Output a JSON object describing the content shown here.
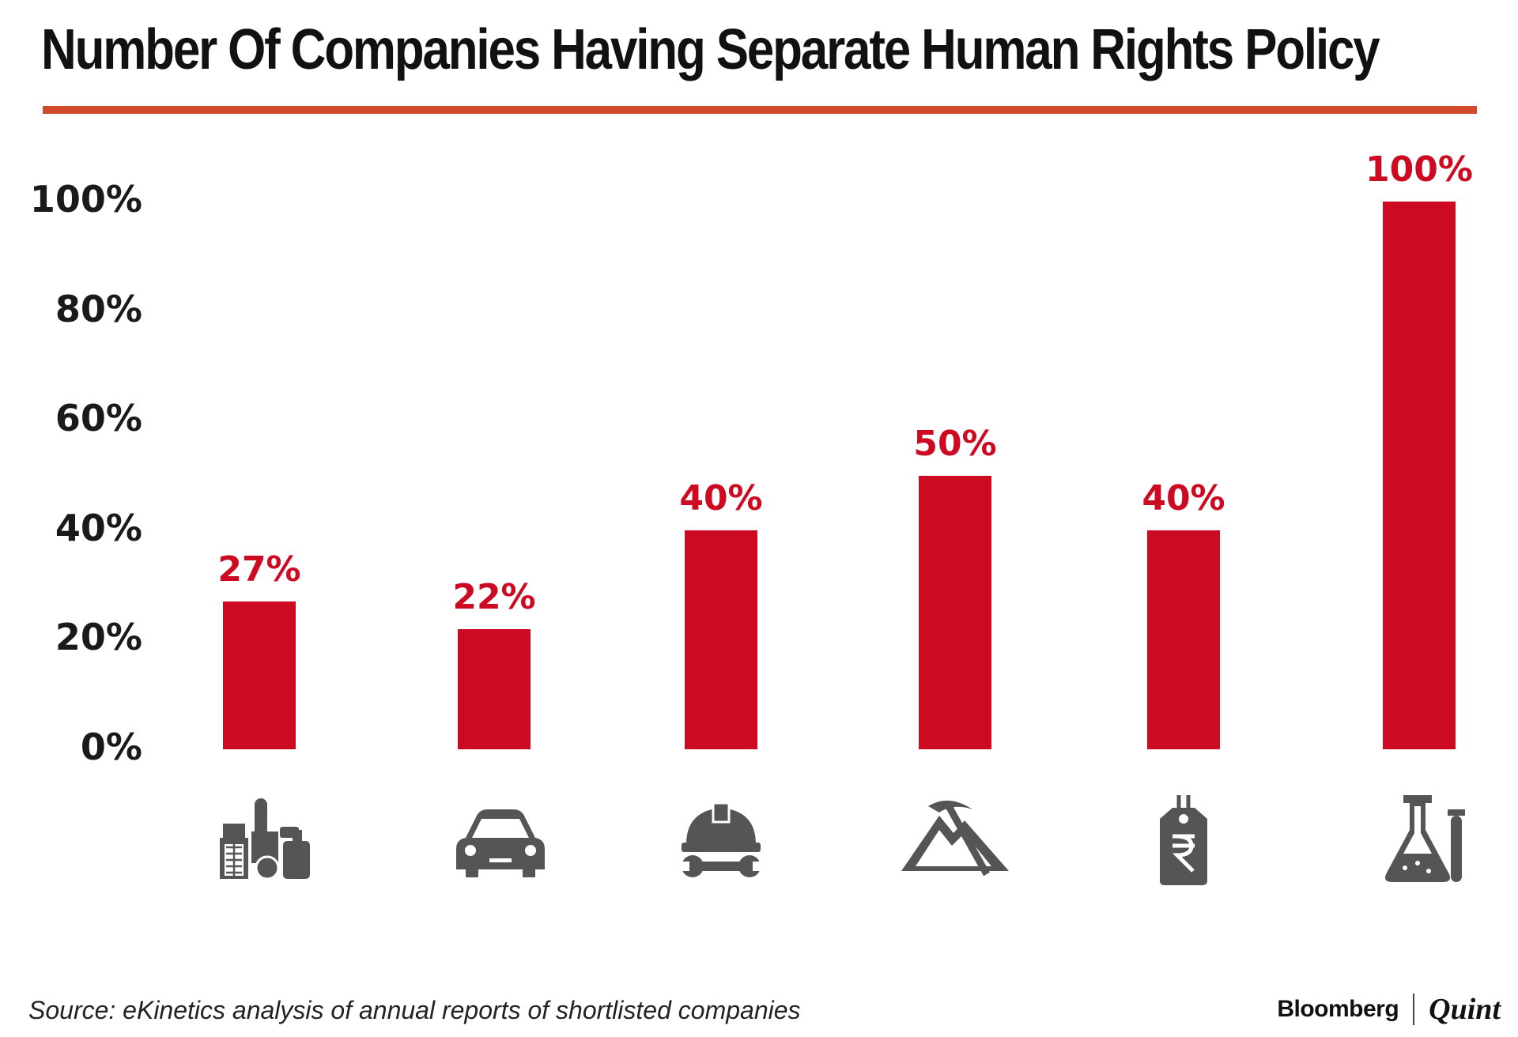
{
  "chart_data": {
    "type": "bar",
    "title": "Number Of Companies Having Separate Human Rights Policy",
    "categories": [
      "manufacturing-icon",
      "car-icon",
      "hardhat-wrench-icon",
      "mining-icon",
      "price-tag-rupee-icon",
      "lab-flask-icon"
    ],
    "values": [
      27,
      22,
      40,
      50,
      40,
      100
    ],
    "data_labels": [
      "27%",
      "22%",
      "40%",
      "50%",
      "40%",
      "100%"
    ],
    "ylim": [
      0,
      100
    ],
    "yticks": [
      0,
      20,
      40,
      60,
      80,
      100
    ],
    "ytick_labels": [
      "0%",
      "20%",
      "40%",
      "60%",
      "80%",
      "100%"
    ],
    "xlabel": "",
    "ylabel": "",
    "grid": false,
    "colors": {
      "bar": "#cc0a22",
      "label": "#cc0a22",
      "icon": "#555555",
      "rule": "#d24a2e"
    }
  },
  "footer": {
    "source": "Source: eKinetics analysis of annual reports of shortlisted companies",
    "brand_primary": "Bloomberg",
    "brand_secondary": "Quint"
  }
}
